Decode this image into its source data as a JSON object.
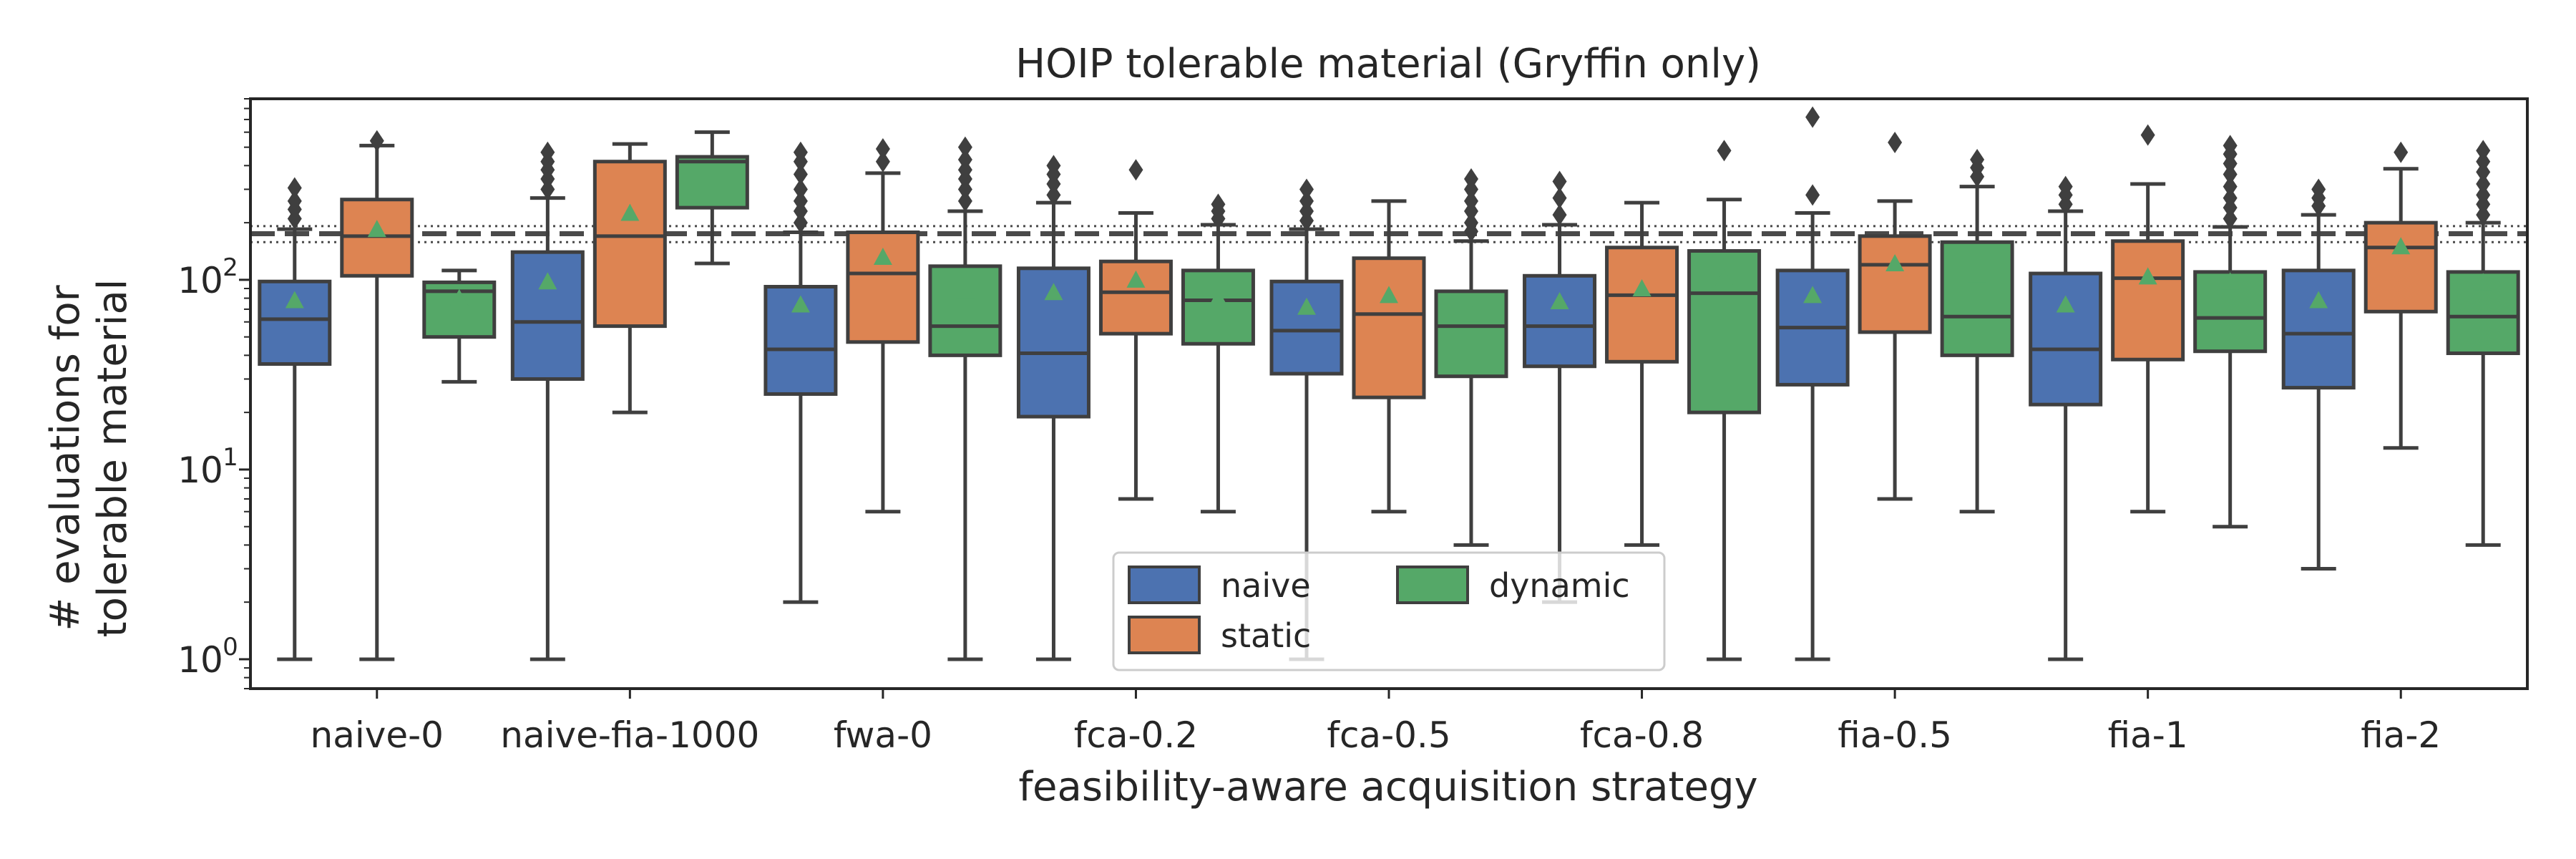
{
  "chart_data": {
    "type": "box",
    "title": "HOIP tolerable material (Gryffin only)",
    "xlabel": "feasibility-aware acquisition strategy",
    "ylabel_lines": [
      "# evaluations for",
      "tolerable material"
    ],
    "yscale": "log",
    "ylim": [
      0.7,
      900
    ],
    "yticks": [
      {
        "value": 1,
        "base": "10",
        "exp": "0"
      },
      {
        "value": 10,
        "base": "10",
        "exp": "1"
      },
      {
        "value": 100,
        "base": "10",
        "exp": "2"
      }
    ],
    "categories": [
      "naive-0",
      "naive-fia-1000",
      "fwa-0",
      "fca-0.2",
      "fca-0.5",
      "fca-0.8",
      "fia-0.5",
      "fia-1",
      "fia-2"
    ],
    "reference_lines": {
      "dashed": 175,
      "dotted": [
        158,
        192
      ]
    },
    "legend": {
      "position": "lower center",
      "entries": [
        "naive",
        "static",
        "dynamic"
      ]
    },
    "series": [
      {
        "name": "naive",
        "color": "#4c72b0",
        "boxes": [
          {
            "whislo": 1,
            "q1": 36,
            "med": 62,
            "q3": 98,
            "whishi": 185,
            "mean": 78,
            "fliers": [
              210,
              235,
              260,
              305
            ]
          },
          {
            "whislo": 1,
            "q1": 30,
            "med": 60,
            "q3": 140,
            "whishi": 270,
            "mean": 98,
            "fliers": [
              300,
              340,
              380,
              420,
              470
            ]
          },
          {
            "whislo": 2,
            "q1": 25,
            "med": 43,
            "q3": 92,
            "whishi": 178,
            "mean": 74,
            "fliers": [
              200,
              230,
              260,
              300,
              360,
              420,
              470
            ]
          },
          {
            "whislo": 1,
            "q1": 19,
            "med": 41,
            "q3": 115,
            "whishi": 255,
            "mean": 86,
            "fliers": [
              280,
              320,
              360,
              400
            ]
          },
          {
            "whislo": 1,
            "q1": 32,
            "med": 54,
            "q3": 98,
            "whishi": 185,
            "mean": 72,
            "fliers": [
              205,
              230,
              260,
              300
            ]
          },
          {
            "whislo": 2,
            "q1": 35,
            "med": 57,
            "q3": 105,
            "whishi": 195,
            "mean": 77,
            "fliers": [
              220,
              270,
              330
            ]
          },
          {
            "whislo": 1,
            "q1": 28,
            "med": 56,
            "q3": 112,
            "whishi": 225,
            "mean": 83,
            "fliers": [
              280,
              720
            ]
          },
          {
            "whislo": 1,
            "q1": 22,
            "med": 43,
            "q3": 108,
            "whishi": 230,
            "mean": 74,
            "fliers": [
              250,
              280,
              310
            ]
          },
          {
            "whislo": 3,
            "q1": 27,
            "med": 52,
            "q3": 112,
            "whishi": 220,
            "mean": 78,
            "fliers": [
              245,
              270,
              300
            ]
          }
        ]
      },
      {
        "name": "static",
        "color": "#dd8452",
        "boxes": [
          {
            "whislo": 1,
            "q1": 105,
            "med": 170,
            "q3": 265,
            "whishi": 510,
            "mean": 185,
            "fliers": [
              540
            ]
          },
          {
            "whislo": 20,
            "q1": 57,
            "med": 170,
            "q3": 420,
            "whishi": 520,
            "mean": 225,
            "fliers": []
          },
          {
            "whislo": 6,
            "q1": 47,
            "med": 108,
            "q3": 178,
            "whishi": 365,
            "mean": 132,
            "fliers": [
              420,
              490
            ]
          },
          {
            "whislo": 7,
            "q1": 52,
            "med": 86,
            "q3": 125,
            "whishi": 225,
            "mean": 100,
            "fliers": [
              380
            ]
          },
          {
            "whislo": 6,
            "q1": 24,
            "med": 66,
            "q3": 130,
            "whishi": 260,
            "mean": 83,
            "fliers": []
          },
          {
            "whislo": 4,
            "q1": 37,
            "med": 83,
            "q3": 148,
            "whishi": 255,
            "mean": 90,
            "fliers": []
          },
          {
            "whislo": 7,
            "q1": 53,
            "med": 120,
            "q3": 170,
            "whishi": 260,
            "mean": 122,
            "fliers": [
              530
            ]
          },
          {
            "whislo": 6,
            "q1": 38,
            "med": 102,
            "q3": 160,
            "whishi": 320,
            "mean": 104,
            "fliers": [
              580
            ]
          },
          {
            "whislo": 13,
            "q1": 68,
            "med": 148,
            "q3": 200,
            "whishi": 385,
            "mean": 150,
            "fliers": [
              470
            ]
          }
        ]
      },
      {
        "name": "dynamic",
        "color": "#55a868",
        "boxes": [
          {
            "whislo": 29,
            "q1": 50,
            "med": 87,
            "q3": 97,
            "whishi": 112,
            "mean": 80,
            "fliers": []
          },
          {
            "whislo": 122,
            "q1": 240,
            "med": 420,
            "q3": 445,
            "whishi": 600,
            "mean": 330,
            "fliers": []
          },
          {
            "whislo": 1,
            "q1": 40,
            "med": 57,
            "q3": 118,
            "whishi": 230,
            "mean": 88,
            "fliers": [
              260,
              300,
              340,
              380,
              430,
              500
            ]
          },
          {
            "whislo": 6,
            "q1": 46,
            "med": 78,
            "q3": 112,
            "whishi": 195,
            "mean": 80,
            "fliers": [
              210,
              230,
              250
            ]
          },
          {
            "whislo": 4,
            "q1": 31,
            "med": 57,
            "q3": 87,
            "whishi": 160,
            "mean": 66,
            "fliers": [
              180,
              200,
              230,
              260,
              300,
              340
            ]
          },
          {
            "whislo": 1,
            "q1": 20,
            "med": 85,
            "q3": 142,
            "whishi": 265,
            "mean": 102,
            "fliers": [
              480
            ]
          },
          {
            "whislo": 6,
            "q1": 40,
            "med": 64,
            "q3": 158,
            "whishi": 310,
            "mean": 107,
            "fliers": [
              350,
              390,
              430
            ]
          },
          {
            "whislo": 5,
            "q1": 42,
            "med": 63,
            "q3": 110,
            "whishi": 190,
            "mean": 98,
            "fliers": [
              210,
              240,
              270,
              310,
              360,
              410,
              460,
              510
            ]
          },
          {
            "whislo": 4,
            "q1": 41,
            "med": 64,
            "q3": 110,
            "whishi": 200,
            "mean": 97,
            "fliers": [
              220,
              250,
              280,
              320,
              370,
              420,
              480
            ]
          }
        ]
      }
    ]
  }
}
